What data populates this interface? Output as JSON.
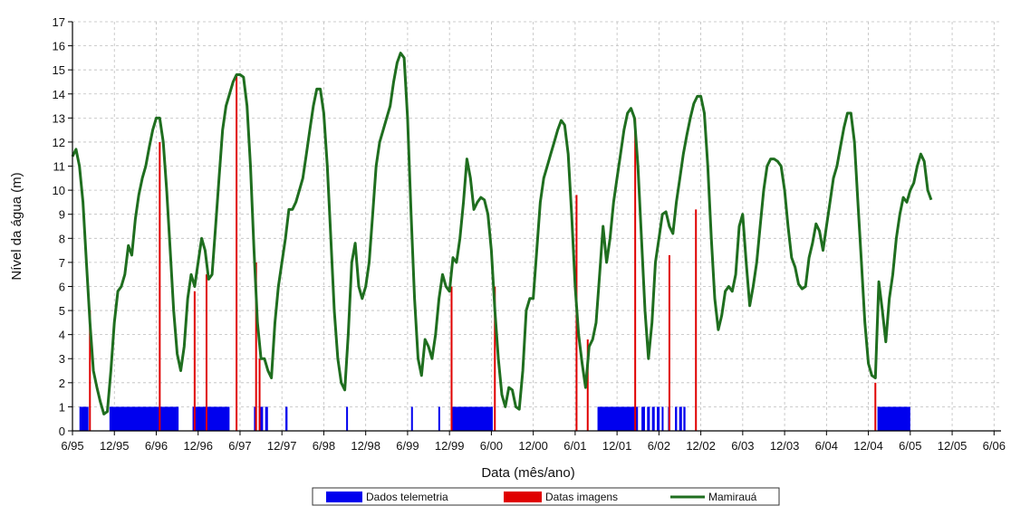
{
  "chart_data": {
    "type": "line",
    "xlabel": "Data (mês/ano)",
    "ylabel": "Nível da água (m)",
    "xlim": [
      0,
      133
    ],
    "ylim": [
      0,
      17
    ],
    "y_ticks": [
      0,
      1,
      2,
      3,
      4,
      5,
      6,
      7,
      8,
      9,
      10,
      11,
      12,
      13,
      14,
      15,
      16,
      17
    ],
    "x_ticks": [
      {
        "m": 0,
        "label": "6/95"
      },
      {
        "m": 6,
        "label": "12/95"
      },
      {
        "m": 12,
        "label": "6/96"
      },
      {
        "m": 18,
        "label": "12/96"
      },
      {
        "m": 24,
        "label": "6/97"
      },
      {
        "m": 30,
        "label": "12/97"
      },
      {
        "m": 36,
        "label": "6/98"
      },
      {
        "m": 42,
        "label": "12/98"
      },
      {
        "m": 48,
        "label": "6/99"
      },
      {
        "m": 54,
        "label": "12/99"
      },
      {
        "m": 60,
        "label": "6/00"
      },
      {
        "m": 66,
        "label": "12/00"
      },
      {
        "m": 72,
        "label": "6/01"
      },
      {
        "m": 78,
        "label": "12/01"
      },
      {
        "m": 84,
        "label": "6/02"
      },
      {
        "m": 90,
        "label": "12/02"
      },
      {
        "m": 96,
        "label": "6/03"
      },
      {
        "m": 102,
        "label": "12/03"
      },
      {
        "m": 108,
        "label": "6/04"
      },
      {
        "m": 114,
        "label": "12/04"
      },
      {
        "m": 120,
        "label": "6/05"
      },
      {
        "m": 126,
        "label": "12/05"
      },
      {
        "m": 132,
        "label": "6/06"
      }
    ],
    "grid": true,
    "legend_position": "bottom-center",
    "series": [
      {
        "name": "Mamirauá",
        "kind": "line",
        "color": "#1f6e1f",
        "points": [
          [
            0,
            11.4
          ],
          [
            0.5,
            11.7
          ],
          [
            1,
            11.0
          ],
          [
            1.5,
            9.5
          ],
          [
            2,
            7.0
          ],
          [
            2.5,
            4.5
          ],
          [
            3,
            2.5
          ],
          [
            3.5,
            1.8
          ],
          [
            4,
            1.2
          ],
          [
            4.5,
            0.7
          ],
          [
            5,
            0.8
          ],
          [
            5.5,
            2.5
          ],
          [
            6,
            4.5
          ],
          [
            6.5,
            5.8
          ],
          [
            7,
            6.0
          ],
          [
            7.5,
            6.5
          ],
          [
            8,
            7.7
          ],
          [
            8.5,
            7.3
          ],
          [
            9,
            8.8
          ],
          [
            9.5,
            9.8
          ],
          [
            10,
            10.5
          ],
          [
            10.5,
            11.0
          ],
          [
            11,
            11.8
          ],
          [
            11.5,
            12.5
          ],
          [
            12,
            13.0
          ],
          [
            12.5,
            13.0
          ],
          [
            13,
            12.0
          ],
          [
            13.5,
            10.0
          ],
          [
            14,
            7.5
          ],
          [
            14.5,
            5.0
          ],
          [
            15,
            3.2
          ],
          [
            15.5,
            2.5
          ],
          [
            16,
            3.5
          ],
          [
            16.5,
            5.5
          ],
          [
            17,
            6.5
          ],
          [
            17.5,
            6.0
          ],
          [
            18,
            7.0
          ],
          [
            18.5,
            8.0
          ],
          [
            19,
            7.5
          ],
          [
            19.5,
            6.3
          ],
          [
            20,
            6.5
          ],
          [
            20.5,
            8.5
          ],
          [
            21,
            10.5
          ],
          [
            21.5,
            12.5
          ],
          [
            22,
            13.5
          ],
          [
            22.5,
            14.0
          ],
          [
            23,
            14.5
          ],
          [
            23.5,
            14.8
          ],
          [
            24,
            14.8
          ],
          [
            24.5,
            14.7
          ],
          [
            25,
            13.5
          ],
          [
            25.5,
            11.0
          ],
          [
            26,
            7.5
          ],
          [
            26.5,
            4.5
          ],
          [
            27,
            3.0
          ],
          [
            27.5,
            3.0
          ],
          [
            28,
            2.5
          ],
          [
            28.5,
            2.2
          ],
          [
            29,
            4.5
          ],
          [
            29.5,
            6.0
          ],
          [
            30,
            7.0
          ],
          [
            30.5,
            8.0
          ],
          [
            31,
            9.2
          ],
          [
            31.5,
            9.2
          ],
          [
            32,
            9.5
          ],
          [
            32.5,
            10.0
          ],
          [
            33,
            10.5
          ],
          [
            33.5,
            11.5
          ],
          [
            34,
            12.5
          ],
          [
            34.5,
            13.5
          ],
          [
            35,
            14.2
          ],
          [
            35.5,
            14.2
          ],
          [
            36,
            13.2
          ],
          [
            36.5,
            11.0
          ],
          [
            37,
            8.0
          ],
          [
            37.5,
            5.0
          ],
          [
            38,
            3.0
          ],
          [
            38.5,
            2.0
          ],
          [
            39,
            1.7
          ],
          [
            39.5,
            4.0
          ],
          [
            40,
            7.0
          ],
          [
            40.5,
            7.8
          ],
          [
            41,
            6.0
          ],
          [
            41.5,
            5.5
          ],
          [
            42,
            6.0
          ],
          [
            42.5,
            7.0
          ],
          [
            43,
            9.0
          ],
          [
            43.5,
            11.0
          ],
          [
            44,
            12.0
          ],
          [
            44.5,
            12.5
          ],
          [
            45,
            13.0
          ],
          [
            45.5,
            13.5
          ],
          [
            46,
            14.5
          ],
          [
            46.5,
            15.3
          ],
          [
            47,
            15.7
          ],
          [
            47.5,
            15.5
          ],
          [
            48,
            13.0
          ],
          [
            48.5,
            9.0
          ],
          [
            49,
            5.5
          ],
          [
            49.5,
            3.0
          ],
          [
            50,
            2.3
          ],
          [
            50.5,
            3.8
          ],
          [
            51,
            3.5
          ],
          [
            51.5,
            3.0
          ],
          [
            52,
            4.0
          ],
          [
            52.5,
            5.5
          ],
          [
            53,
            6.5
          ],
          [
            53.5,
            6.0
          ],
          [
            54,
            5.8
          ],
          [
            54.5,
            7.2
          ],
          [
            55,
            7.0
          ],
          [
            55.5,
            8.0
          ],
          [
            56,
            9.5
          ],
          [
            56.5,
            11.3
          ],
          [
            57,
            10.5
          ],
          [
            57.5,
            9.2
          ],
          [
            58,
            9.5
          ],
          [
            58.5,
            9.7
          ],
          [
            59,
            9.6
          ],
          [
            59.5,
            9.0
          ],
          [
            60,
            7.5
          ],
          [
            60.5,
            5.0
          ],
          [
            61,
            3.0
          ],
          [
            61.5,
            1.5
          ],
          [
            62,
            1.0
          ],
          [
            62.5,
            1.8
          ],
          [
            63,
            1.7
          ],
          [
            63.5,
            1.0
          ],
          [
            64,
            0.9
          ],
          [
            64.5,
            2.5
          ],
          [
            65,
            5.0
          ],
          [
            65.5,
            5.5
          ],
          [
            66,
            5.5
          ],
          [
            66.5,
            7.5
          ],
          [
            67,
            9.5
          ],
          [
            67.5,
            10.5
          ],
          [
            68,
            11.0
          ],
          [
            68.5,
            11.5
          ],
          [
            69,
            12.0
          ],
          [
            69.5,
            12.5
          ],
          [
            70,
            12.9
          ],
          [
            70.5,
            12.7
          ],
          [
            71,
            11.5
          ],
          [
            71.5,
            9.0
          ],
          [
            72,
            6.0
          ],
          [
            72.5,
            4.0
          ],
          [
            73,
            2.8
          ],
          [
            73.5,
            1.8
          ],
          [
            74,
            3.5
          ],
          [
            74.5,
            3.8
          ],
          [
            75,
            4.5
          ],
          [
            75.5,
            6.5
          ],
          [
            76,
            8.5
          ],
          [
            76.5,
            7.0
          ],
          [
            77,
            8.0
          ],
          [
            77.5,
            9.5
          ],
          [
            78,
            10.5
          ],
          [
            78.5,
            11.5
          ],
          [
            79,
            12.5
          ],
          [
            79.5,
            13.2
          ],
          [
            80,
            13.4
          ],
          [
            80.5,
            13.0
          ],
          [
            81,
            11.0
          ],
          [
            81.5,
            8.0
          ],
          [
            82,
            5.0
          ],
          [
            82.5,
            3.0
          ],
          [
            83,
            4.5
          ],
          [
            83.5,
            7.0
          ],
          [
            84,
            8.0
          ],
          [
            84.5,
            9.0
          ],
          [
            85,
            9.1
          ],
          [
            85.5,
            8.5
          ],
          [
            86,
            8.2
          ],
          [
            86.5,
            9.5
          ],
          [
            87,
            10.5
          ],
          [
            87.5,
            11.5
          ],
          [
            88,
            12.3
          ],
          [
            88.5,
            13.0
          ],
          [
            89,
            13.6
          ],
          [
            89.5,
            13.9
          ],
          [
            90,
            13.9
          ],
          [
            90.5,
            13.2
          ],
          [
            91,
            11.0
          ],
          [
            91.5,
            8.0
          ],
          [
            92,
            5.5
          ],
          [
            92.5,
            4.2
          ],
          [
            93,
            4.8
          ],
          [
            93.5,
            5.8
          ],
          [
            94,
            6.0
          ],
          [
            94.5,
            5.8
          ],
          [
            95,
            6.5
          ],
          [
            95.5,
            8.5
          ],
          [
            96,
            9.0
          ],
          [
            96.5,
            7.0
          ],
          [
            97,
            5.2
          ],
          [
            97.5,
            6.0
          ],
          [
            98,
            7.0
          ],
          [
            98.5,
            8.5
          ],
          [
            99,
            10.0
          ],
          [
            99.5,
            11.0
          ],
          [
            100,
            11.3
          ],
          [
            100.5,
            11.3
          ],
          [
            101,
            11.2
          ],
          [
            101.5,
            11.0
          ],
          [
            102,
            10.0
          ],
          [
            102.5,
            8.5
          ],
          [
            103,
            7.2
          ],
          [
            103.5,
            6.8
          ],
          [
            104,
            6.1
          ],
          [
            104.5,
            5.9
          ],
          [
            105,
            6.0
          ],
          [
            105.5,
            7.2
          ],
          [
            106,
            7.8
          ],
          [
            106.5,
            8.6
          ],
          [
            107,
            8.3
          ],
          [
            107.5,
            7.5
          ],
          [
            108,
            8.5
          ],
          [
            108.5,
            9.5
          ],
          [
            109,
            10.5
          ],
          [
            109.5,
            11.0
          ],
          [
            110,
            11.8
          ],
          [
            110.5,
            12.6
          ],
          [
            111,
            13.2
          ],
          [
            111.5,
            13.2
          ],
          [
            112,
            12.0
          ],
          [
            112.5,
            9.5
          ],
          [
            113,
            7.0
          ],
          [
            113.5,
            4.5
          ],
          [
            114,
            2.8
          ],
          [
            114.5,
            2.3
          ],
          [
            115,
            2.2
          ],
          [
            115.5,
            6.2
          ],
          [
            116,
            5.0
          ],
          [
            116.5,
            3.7
          ],
          [
            117,
            5.5
          ],
          [
            117.5,
            6.5
          ],
          [
            118,
            8.0
          ],
          [
            118.5,
            9.0
          ],
          [
            119,
            9.7
          ],
          [
            119.5,
            9.5
          ],
          [
            120,
            10.0
          ],
          [
            120.5,
            10.3
          ],
          [
            121,
            11.0
          ],
          [
            121.5,
            11.5
          ],
          [
            122,
            11.2
          ],
          [
            122.5,
            10.0
          ],
          [
            123,
            9.6
          ]
        ]
      },
      {
        "name": "Datas imagens",
        "kind": "vlines",
        "color": "#e00000",
        "points": [
          [
            2.5,
            5.0
          ],
          [
            12.5,
            12.0
          ],
          [
            17.5,
            5.8
          ],
          [
            19.2,
            6.5
          ],
          [
            23.5,
            14.8
          ],
          [
            26.3,
            7.0
          ],
          [
            26.8,
            3.0
          ],
          [
            54.3,
            6.0
          ],
          [
            60.5,
            6.0
          ],
          [
            72.2,
            9.8
          ],
          [
            73.8,
            3.8
          ],
          [
            80.6,
            13.0
          ],
          [
            85.5,
            7.3
          ],
          [
            89.3,
            9.2
          ],
          [
            115,
            2.0
          ]
        ]
      },
      {
        "name": "Dados telemetria",
        "kind": "blocks",
        "color": "#0000ee",
        "value": 1,
        "intervals": [
          [
            1,
            2.3
          ],
          [
            5.3,
            15.2
          ],
          [
            17.2,
            22.5
          ],
          [
            26.0,
            26.4
          ],
          [
            26.9,
            27.3
          ],
          [
            27.6,
            28.0
          ],
          [
            30.5,
            30.8
          ],
          [
            39.2,
            39.4
          ],
          [
            48.5,
            48.7
          ],
          [
            52.4,
            52.6
          ],
          [
            54.4,
            60.2
          ],
          [
            75.2,
            81.0
          ],
          [
            81.5,
            82.0
          ],
          [
            82.3,
            82.7
          ],
          [
            83.0,
            83.4
          ],
          [
            83.7,
            84.1
          ],
          [
            84.4,
            84.6
          ],
          [
            85.3,
            85.6
          ],
          [
            86.3,
            86.6
          ],
          [
            86.9,
            87.3
          ],
          [
            87.5,
            87.8
          ],
          [
            115.3,
            120.0
          ]
        ]
      }
    ]
  }
}
